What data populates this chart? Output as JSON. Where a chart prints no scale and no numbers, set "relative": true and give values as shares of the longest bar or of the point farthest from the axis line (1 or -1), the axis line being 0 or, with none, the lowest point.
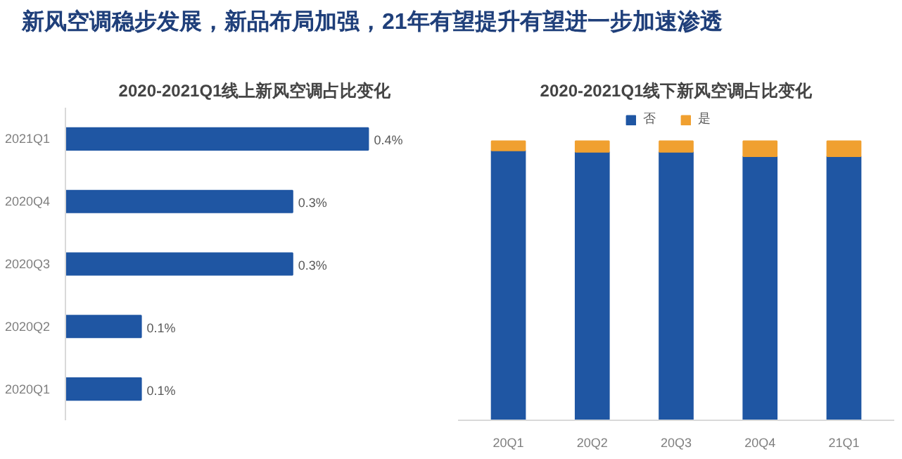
{
  "chart_data": [
    {
      "type": "other",
      "title": "新风空调稳步发展，新品布局加强，21年有望提升有望进一步加速渗透"
    },
    {
      "type": "bar",
      "title": "2020-2021Q1线上新风空调占比变化",
      "orientation": "horizontal",
      "tick_labels": "y",
      "categories": [
        "2021Q1",
        "2020Q4",
        "2020Q3",
        "2020Q2",
        "2020Q1"
      ],
      "values": [
        0.4,
        0.3,
        0.3,
        0.1,
        0.1
      ],
      "value_labels": [
        "0.4%",
        "0.3%",
        "0.3%",
        "0.1%",
        "0.1%"
      ],
      "color": "#1f56a3",
      "grid": false,
      "legend": false
    },
    {
      "type": "bar",
      "title": "2020-2021Q1线下新风空调占比变化",
      "stacked": true,
      "relative": true,
      "categories": [
        "20Q1",
        "20Q2",
        "20Q3",
        "20Q4",
        "21Q1"
      ],
      "series": [
        {
          "name": "否",
          "color": "#1f56a3",
          "values": [
            0.967,
            0.962,
            0.962,
            0.946,
            0.946
          ]
        },
        {
          "name": "是",
          "color": "#f0a030",
          "values": [
            0.033,
            0.038,
            0.038,
            0.054,
            0.054
          ]
        }
      ],
      "legend": "top",
      "grid": false
    }
  ]
}
